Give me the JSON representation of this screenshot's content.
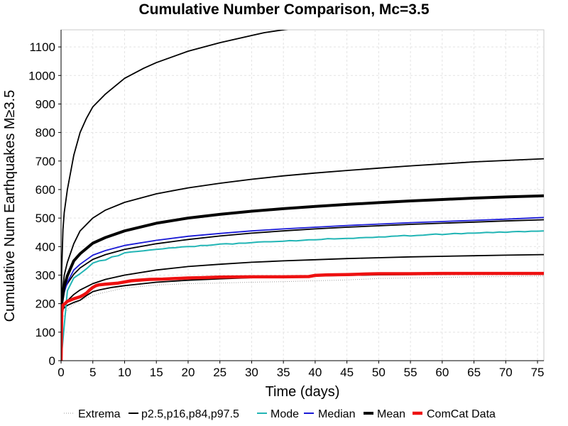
{
  "chart_data": {
    "type": "line",
    "title": "Cumulative Number Comparison, Mc=3.5",
    "xlabel": "Time (days)",
    "ylabel": "Cumulative Num Earthquakes M≥3.5",
    "xlim": [
      0,
      76
    ],
    "ylim": [
      0,
      1160
    ],
    "x_ticks": [
      0,
      5,
      10,
      15,
      20,
      25,
      30,
      35,
      40,
      45,
      50,
      55,
      60,
      65,
      70,
      75
    ],
    "y_ticks": [
      0,
      100,
      200,
      300,
      400,
      500,
      600,
      700,
      800,
      900,
      1000,
      1100
    ],
    "grid": true,
    "legend_position": "bottom",
    "series": [
      {
        "name": "Extrema",
        "color": "#999999",
        "style": "dotted",
        "x": [
          0,
          0.1,
          0.3,
          1,
          2,
          3,
          4,
          5,
          6,
          8,
          10,
          15,
          20,
          25,
          30,
          35,
          40,
          45,
          50,
          55,
          60,
          65,
          70,
          76
        ],
        "y": [
          0,
          130,
          150,
          180,
          198,
          210,
          220,
          228,
          235,
          245,
          255,
          265,
          270,
          272,
          275,
          277,
          280,
          283,
          288,
          290,
          292,
          294,
          295,
          297
        ]
      },
      {
        "name": "p2.5",
        "color": "#000000",
        "x": [
          0,
          0.1,
          0.3,
          0.5,
          1,
          1.5,
          2,
          3,
          4,
          5,
          6,
          8,
          10,
          15,
          20,
          25,
          30,
          35,
          40,
          45,
          50,
          55,
          60,
          65,
          70,
          76
        ],
        "y": [
          0,
          150,
          180,
          186,
          194,
          199,
          204,
          212,
          228,
          242,
          248,
          257,
          263,
          275,
          282,
          287,
          291,
          294,
          297,
          299,
          301,
          302,
          303,
          304,
          305,
          305
        ]
      },
      {
        "name": "p16",
        "color": "#000000",
        "x": [
          0,
          0.1,
          0.5,
          1,
          2,
          3,
          5,
          7,
          10,
          15,
          20,
          25,
          30,
          35,
          40,
          45,
          50,
          55,
          60,
          65,
          70,
          76
        ],
        "y": [
          0,
          170,
          195,
          210,
          232,
          248,
          270,
          285,
          300,
          318,
          330,
          338,
          345,
          350,
          354,
          358,
          361,
          364,
          366,
          368,
          370,
          372
        ]
      },
      {
        "name": "p84",
        "color": "#000000",
        "x": [
          0,
          0.1,
          0.5,
          1,
          2,
          3,
          5,
          7,
          10,
          15,
          20,
          25,
          30,
          35,
          40,
          45,
          50,
          55,
          60,
          65,
          70,
          76
        ],
        "y": [
          0,
          200,
          250,
          270,
          303,
          325,
          355,
          372,
          390,
          410,
          425,
          437,
          447,
          455,
          462,
          468,
          473,
          478,
          482,
          486,
          490,
          494
        ]
      },
      {
        "name": "p97.5",
        "color": "#000000",
        "x": [
          0,
          0.1,
          0.5,
          1,
          2,
          3,
          5,
          7,
          10,
          15,
          20,
          25,
          30,
          35,
          40,
          45,
          50,
          55,
          60,
          65,
          70,
          76
        ],
        "y": [
          0,
          220,
          300,
          345,
          410,
          455,
          500,
          528,
          555,
          585,
          606,
          622,
          636,
          648,
          658,
          667,
          675,
          683,
          690,
          697,
          702,
          708
        ]
      },
      {
        "name": "Mode",
        "color": "#22b5b5",
        "x": [
          0,
          1,
          2,
          3,
          4,
          5,
          6,
          7,
          8,
          9,
          10,
          11,
          12,
          13,
          14,
          15,
          16,
          17,
          18,
          19,
          20,
          21,
          22,
          23,
          24,
          25,
          26,
          27,
          28,
          29,
          30,
          31,
          32,
          33,
          34,
          35,
          36,
          37,
          38,
          39,
          40,
          41,
          42,
          43,
          44,
          45,
          46,
          47,
          48,
          49,
          50,
          51,
          52,
          53,
          54,
          55,
          56,
          57,
          58,
          59,
          60,
          61,
          62,
          63,
          64,
          65,
          66,
          67,
          68,
          69,
          70,
          71,
          72,
          73,
          74,
          75,
          76
        ],
        "y": [
          0,
          245,
          290,
          305,
          322,
          342,
          350,
          353,
          364,
          368,
          378,
          381,
          383,
          385,
          388,
          390,
          392,
          395,
          396,
          399,
          400,
          400,
          404,
          404,
          406,
          409,
          410,
          409,
          412,
          412,
          414,
          416,
          417,
          417,
          418,
          419,
          421,
          420,
          422,
          424,
          424,
          425,
          428,
          427,
          428,
          429,
          429,
          431,
          432,
          432,
          434,
          434,
          436,
          437,
          439,
          437,
          439,
          440,
          442,
          444,
          442,
          444,
          446,
          445,
          447,
          447,
          448,
          450,
          449,
          451,
          450,
          452,
          453,
          452,
          454,
          454,
          455
        ]
      },
      {
        "name": "Median",
        "color": "#1a1ad6",
        "x": [
          0,
          0.1,
          0.5,
          1,
          2,
          3,
          5,
          7,
          10,
          15,
          20,
          25,
          30,
          35,
          40,
          45,
          50,
          55,
          60,
          65,
          70,
          76
        ],
        "y": [
          0,
          190,
          240,
          275,
          318,
          338,
          370,
          386,
          404,
          422,
          436,
          446,
          455,
          462,
          468,
          474,
          479,
          484,
          488,
          492,
          496,
          502
        ]
      },
      {
        "name": "Mean",
        "color": "#000000",
        "style": "bold",
        "x": [
          0,
          0.1,
          0.5,
          1,
          2,
          3,
          5,
          7,
          10,
          15,
          20,
          25,
          30,
          35,
          40,
          45,
          50,
          55,
          60,
          65,
          70,
          76
        ],
        "y": [
          0,
          200,
          260,
          298,
          350,
          375,
          412,
          432,
          455,
          482,
          500,
          513,
          524,
          533,
          541,
          548,
          554,
          560,
          565,
          570,
          574,
          578
        ]
      },
      {
        "name": "Extrema",
        "color": "#000000",
        "x": [
          0,
          0.1,
          0.3,
          0.5,
          1,
          2,
          3,
          4,
          5,
          7,
          10,
          13,
          15,
          20,
          25,
          30,
          32,
          35,
          40
        ],
        "y": [
          0,
          320,
          460,
          520,
          600,
          720,
          800,
          850,
          890,
          935,
          990,
          1025,
          1045,
          1085,
          1115,
          1140,
          1150,
          1160,
          1175
        ]
      },
      {
        "name": "ComCat Data",
        "color": "#ee1111",
        "style": "thick",
        "x": [
          0,
          0.1,
          0.3,
          0.6,
          1,
          2,
          3,
          3.5,
          4,
          4.5,
          5,
          5.5,
          6,
          7,
          8,
          9,
          10,
          11,
          12,
          14,
          16,
          18,
          20,
          22,
          25,
          30,
          35,
          39,
          40,
          42,
          45,
          48,
          50,
          55,
          60,
          65,
          70,
          76
        ],
        "y": [
          0,
          170,
          195,
          200,
          208,
          217,
          224,
          230,
          237,
          248,
          257,
          263,
          266,
          268,
          270,
          272,
          276,
          280,
          282,
          285,
          286,
          288,
          290,
          291,
          293,
          294,
          294,
          295,
          299,
          301,
          302,
          304,
          305,
          305,
          306,
          306,
          306,
          306
        ]
      }
    ]
  },
  "legend": {
    "items": [
      {
        "label": "Extrema",
        "color": "#999999",
        "style": "dotted"
      },
      {
        "label": "p2.5,p16,p84,p97.5",
        "color": "#000000",
        "style": "solid"
      },
      {
        "label": "Mode",
        "color": "#22b5b5",
        "style": "solid"
      },
      {
        "label": "Median",
        "color": "#1a1ad6",
        "style": "solid"
      },
      {
        "label": "Mean",
        "color": "#000000",
        "style": "bold"
      },
      {
        "label": "ComCat Data",
        "color": "#ee1111",
        "style": "thick"
      }
    ]
  }
}
